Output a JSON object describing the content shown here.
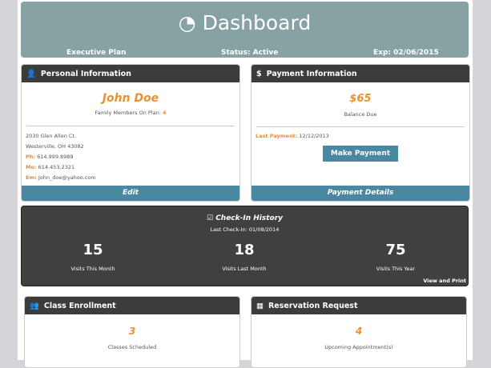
{
  "header": {
    "title": "Dashboard",
    "icon": "dashboard-gauge-icon",
    "plan": "Executive Plan",
    "status": "Status: Active",
    "expiration": "Exp: 02/06/2015"
  },
  "personal": {
    "title": "Personal Information",
    "icon": "user-icon",
    "name": "John Doe",
    "family_label": "Family Members On Plan:",
    "family_count": "4",
    "address1": "2030 Glen Allen Ct.",
    "address2": "Westerville, OH 43082",
    "phone_label": "Ph:",
    "phone": "614.999.8989",
    "mobile_label": "Mo:",
    "mobile": "614.453.2321",
    "email_label": "Em:",
    "email": "John_doe@yahoo.com",
    "edit": "Edit"
  },
  "payment": {
    "title": "Payment Information",
    "icon": "dollar-icon",
    "amount": "$65",
    "balance_label": "Balance Due",
    "last_label": "Last Payment:",
    "last_date": "12/12/2013",
    "make_payment": "Make Payment",
    "details": "Payment Details"
  },
  "checkin": {
    "title": "Check-In History",
    "icon": "checkbox-icon",
    "last": "Last Check-In: 01/08/2014",
    "stats": [
      {
        "value": "15",
        "label": "Visits This Month"
      },
      {
        "value": "18",
        "label": "Visits Last Month"
      },
      {
        "value": "75",
        "label": "Visits This Year"
      }
    ],
    "view_print": "View and Print"
  },
  "classes": {
    "title": "Class Enrollment",
    "icon": "group-icon",
    "count": "3",
    "label": "Classes Scheduled"
  },
  "reservation": {
    "title": "Reservation Request",
    "icon": "calendar-icon",
    "count": "4",
    "label": "Upcoming Appointment(s)"
  },
  "colors": {
    "header": "#87a2a2",
    "dark": "#3c3c3c",
    "accent": "#e8912f",
    "button": "#4a87a0"
  }
}
